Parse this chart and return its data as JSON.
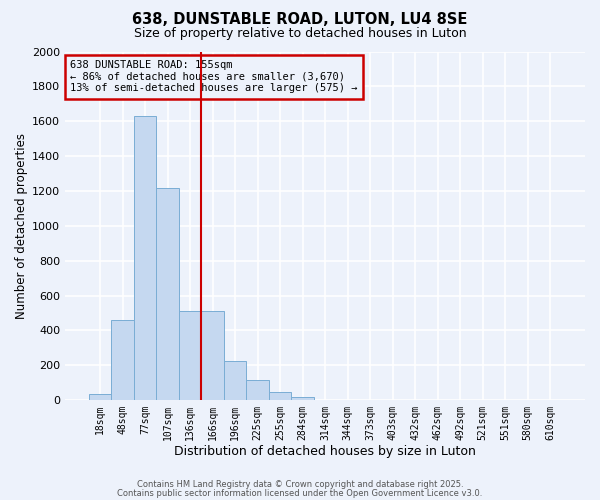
{
  "title": "638, DUNSTABLE ROAD, LUTON, LU4 8SE",
  "subtitle": "Size of property relative to detached houses in Luton",
  "xlabel": "Distribution of detached houses by size in Luton",
  "ylabel": "Number of detached properties",
  "bar_labels": [
    "18sqm",
    "48sqm",
    "77sqm",
    "107sqm",
    "136sqm",
    "166sqm",
    "196sqm",
    "225sqm",
    "255sqm",
    "284sqm",
    "314sqm",
    "344sqm",
    "373sqm",
    "403sqm",
    "432sqm",
    "462sqm",
    "492sqm",
    "521sqm",
    "551sqm",
    "580sqm",
    "610sqm"
  ],
  "bar_values": [
    35,
    460,
    1630,
    1215,
    510,
    510,
    225,
    115,
    50,
    20,
    0,
    0,
    0,
    0,
    0,
    0,
    0,
    0,
    0,
    0,
    0
  ],
  "bar_color": "#c5d8f0",
  "bar_edgecolor": "#7aadd4",
  "vline_color": "#cc0000",
  "vline_pos": 4.5,
  "annotation_text": "638 DUNSTABLE ROAD: 155sqm\n← 86% of detached houses are smaller (3,670)\n13% of semi-detached houses are larger (575) →",
  "annotation_box_edgecolor": "#cc0000",
  "ylim": [
    0,
    2000
  ],
  "yticks": [
    0,
    200,
    400,
    600,
    800,
    1000,
    1200,
    1400,
    1600,
    1800,
    2000
  ],
  "background_color": "#edf2fb",
  "grid_color": "#ffffff",
  "footer1": "Contains HM Land Registry data © Crown copyright and database right 2025.",
  "footer2": "Contains public sector information licensed under the Open Government Licence v3.0."
}
